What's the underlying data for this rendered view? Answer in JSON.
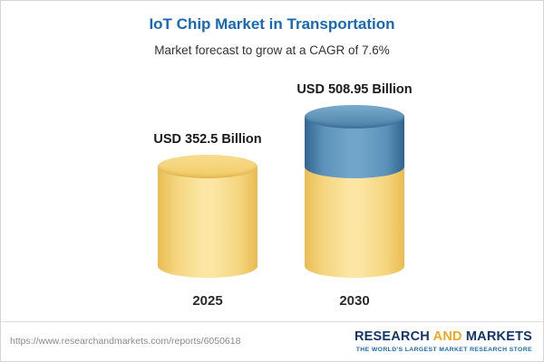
{
  "chart_data": {
    "type": "bar",
    "bar_style": "cylinder-3d",
    "title": "IoT Chip Market in Transportation",
    "subtitle": "Market forecast to grow at a CAGR of 7.6%",
    "categories": [
      "2025",
      "2030"
    ],
    "values": [
      352.5,
      508.95
    ],
    "value_labels": [
      "USD 352.5 Billion",
      "USD 508.95 Billion"
    ],
    "unit": "USD Billion",
    "xlabel": "",
    "ylabel": "",
    "legend": "none",
    "grid": false,
    "notes": "2030 bar is stacked: gold base equal to 2025 value with blue growth segment on top"
  },
  "colors": {
    "title_blue": "#1769b5",
    "gold_bar": "#f5d57e",
    "blue_segment": "#5c92b8",
    "logo_navy": "#13356b",
    "logo_orange": "#f2a71e",
    "tagline_blue": "#1769b5"
  },
  "footer": {
    "url": "https://www.researchandmarkets.com/reports/6050618",
    "logo": {
      "research": "RESEARCH",
      "and": "AND",
      "markets": "MARKETS",
      "tagline": "THE WORLD'S LARGEST MARKET RESEARCH STORE"
    }
  }
}
